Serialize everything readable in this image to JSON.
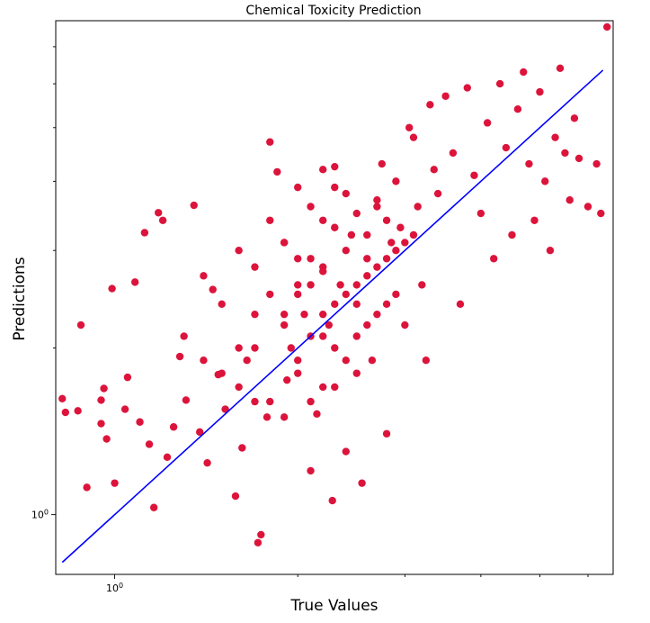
{
  "chart_data": {
    "type": "scatter",
    "title": "Chemical Toxicity Prediction",
    "xlabel": "True Values",
    "ylabel": "Predictions",
    "x_scale": "log",
    "y_scale": "log",
    "xlim": [
      0.8,
      6.6
    ],
    "ylim": [
      0.78,
      7.8
    ],
    "x_tick_labels": [
      {
        "value": 1,
        "label": "10^0"
      }
    ],
    "y_tick_labels": [
      {
        "value": 1,
        "label": "10^0"
      }
    ],
    "x_minor_ticks": [
      2,
      3,
      4,
      5,
      6
    ],
    "y_minor_ticks": [
      2,
      3,
      4,
      5,
      6,
      7
    ],
    "grid": false,
    "series": [
      {
        "marker": "circle",
        "color": "#dc143c",
        "points": [
          [
            0.82,
            1.62
          ],
          [
            0.83,
            1.53
          ],
          [
            0.88,
            2.2
          ],
          [
            0.9,
            1.12
          ],
          [
            0.87,
            1.54
          ],
          [
            0.95,
            1.61
          ],
          [
            0.95,
            1.46
          ],
          [
            0.96,
            1.69
          ],
          [
            0.97,
            1.37
          ],
          [
            0.99,
            2.56
          ],
          [
            1.0,
            1.14
          ],
          [
            1.04,
            1.55
          ],
          [
            1.05,
            1.77
          ],
          [
            1.08,
            2.63
          ],
          [
            1.1,
            1.47
          ],
          [
            1.12,
            3.23
          ],
          [
            1.14,
            1.34
          ],
          [
            1.16,
            1.03
          ],
          [
            1.18,
            3.51
          ],
          [
            1.2,
            3.4
          ],
          [
            1.22,
            1.27
          ],
          [
            1.25,
            1.44
          ],
          [
            1.28,
            1.93
          ],
          [
            1.31,
            1.61
          ],
          [
            1.35,
            3.62
          ],
          [
            1.38,
            1.41
          ],
          [
            1.42,
            1.24
          ],
          [
            1.45,
            2.55
          ],
          [
            1.48,
            1.79
          ],
          [
            1.52,
            1.55
          ],
          [
            1.58,
            1.08
          ],
          [
            1.62,
            1.32
          ],
          [
            1.65,
            1.9
          ],
          [
            1.7,
            2.3
          ],
          [
            1.72,
            0.89
          ],
          [
            1.74,
            0.92
          ],
          [
            1.78,
            1.5
          ],
          [
            1.8,
            4.71
          ],
          [
            1.85,
            4.16
          ],
          [
            1.9,
            3.1
          ],
          [
            1.92,
            1.75
          ],
          [
            1.95,
            2.0
          ],
          [
            2.0,
            2.5
          ],
          [
            2.05,
            2.3
          ],
          [
            2.1,
            1.2
          ],
          [
            2.15,
            1.52
          ],
          [
            2.2,
            2.75
          ],
          [
            2.25,
            2.2
          ],
          [
            2.28,
            1.06
          ],
          [
            2.3,
            4.25
          ],
          [
            2.35,
            2.6
          ],
          [
            2.4,
            1.3
          ],
          [
            2.45,
            3.2
          ],
          [
            2.5,
            2.4
          ],
          [
            2.55,
            1.14
          ],
          [
            2.6,
            2.9
          ],
          [
            2.65,
            1.9
          ],
          [
            2.7,
            3.6
          ],
          [
            2.75,
            4.3
          ],
          [
            2.8,
            1.4
          ],
          [
            2.85,
            3.1
          ],
          [
            2.9,
            4.0
          ],
          [
            2.95,
            3.3
          ],
          [
            3.0,
            2.2
          ],
          [
            3.05,
            5.0
          ],
          [
            3.1,
            4.8
          ],
          [
            3.15,
            3.6
          ],
          [
            3.2,
            2.6
          ],
          [
            3.25,
            1.9
          ],
          [
            3.3,
            5.5
          ],
          [
            3.35,
            4.2
          ],
          [
            3.4,
            3.8
          ],
          [
            3.5,
            5.7
          ],
          [
            3.6,
            4.5
          ],
          [
            3.7,
            2.4
          ],
          [
            3.8,
            5.9
          ],
          [
            3.9,
            4.1
          ],
          [
            4.0,
            3.5
          ],
          [
            4.1,
            5.1
          ],
          [
            4.2,
            2.9
          ],
          [
            4.3,
            6.0
          ],
          [
            4.4,
            4.6
          ],
          [
            4.5,
            3.2
          ],
          [
            4.6,
            5.4
          ],
          [
            4.7,
            6.3
          ],
          [
            4.8,
            4.3
          ],
          [
            4.9,
            3.4
          ],
          [
            5.0,
            5.8
          ],
          [
            5.1,
            4.0
          ],
          [
            5.2,
            3.0
          ],
          [
            5.3,
            4.8
          ],
          [
            5.4,
            6.4
          ],
          [
            5.5,
            4.5
          ],
          [
            5.6,
            3.7
          ],
          [
            5.7,
            5.2
          ],
          [
            5.8,
            4.4
          ],
          [
            6.0,
            3.6
          ],
          [
            6.2,
            4.3
          ],
          [
            6.3,
            3.5
          ],
          [
            6.45,
            7.6
          ],
          [
            2.2,
            2.3
          ],
          [
            2.3,
            2.4
          ],
          [
            2.4,
            2.5
          ],
          [
            2.5,
            2.6
          ],
          [
            2.6,
            2.7
          ],
          [
            2.7,
            2.8
          ],
          [
            2.8,
            2.9
          ],
          [
            2.9,
            3.0
          ],
          [
            3.0,
            3.1
          ],
          [
            3.1,
            3.2
          ],
          [
            2.0,
            2.6
          ],
          [
            2.1,
            2.1
          ],
          [
            2.2,
            2.8
          ],
          [
            2.3,
            2.0
          ],
          [
            2.4,
            3.0
          ],
          [
            2.5,
            2.1
          ],
          [
            2.6,
            3.2
          ],
          [
            2.7,
            2.3
          ],
          [
            2.8,
            3.4
          ],
          [
            2.9,
            2.5
          ],
          [
            1.9,
            2.2
          ],
          [
            2.0,
            1.8
          ],
          [
            2.1,
            2.9
          ],
          [
            2.2,
            1.7
          ],
          [
            2.3,
            3.3
          ],
          [
            2.4,
            1.9
          ],
          [
            2.5,
            3.5
          ],
          [
            2.6,
            2.2
          ],
          [
            2.7,
            3.7
          ],
          [
            2.8,
            2.4
          ],
          [
            1.6,
            2.0
          ],
          [
            1.7,
            1.6
          ],
          [
            1.8,
            2.5
          ],
          [
            1.9,
            1.5
          ],
          [
            2.0,
            2.9
          ],
          [
            2.1,
            1.6
          ],
          [
            2.2,
            3.4
          ],
          [
            2.3,
            1.7
          ],
          [
            2.4,
            3.8
          ],
          [
            2.5,
            1.8
          ],
          [
            1.4,
            1.9
          ],
          [
            1.5,
            2.4
          ],
          [
            1.6,
            1.7
          ],
          [
            1.7,
            2.8
          ],
          [
            1.8,
            1.6
          ],
          [
            1.9,
            3.1
          ],
          [
            2.0,
            1.9
          ],
          [
            2.1,
            3.6
          ],
          [
            2.2,
            2.1
          ],
          [
            2.3,
            3.9
          ],
          [
            1.3,
            2.1
          ],
          [
            1.4,
            2.7
          ],
          [
            1.5,
            1.8
          ],
          [
            1.6,
            3.0
          ],
          [
            1.7,
            2.0
          ],
          [
            1.8,
            3.4
          ],
          [
            1.9,
            2.3
          ],
          [
            2.0,
            3.9
          ],
          [
            2.1,
            2.6
          ],
          [
            2.2,
            4.2
          ]
        ]
      },
      {
        "type": "line",
        "color": "#0000ff",
        "points": [
          [
            0.82,
            0.82
          ],
          [
            6.35,
            6.35
          ]
        ]
      }
    ]
  }
}
